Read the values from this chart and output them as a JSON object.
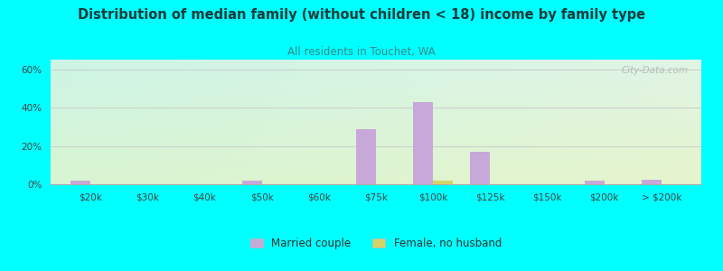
{
  "title": "Distribution of median family (without children < 18) income by family type",
  "subtitle": "All residents in Touchet, WA",
  "title_color": "#1a3a3a",
  "subtitle_color": "#3a8a8a",
  "categories": [
    "$20k",
    "$30k",
    "$40k",
    "$50k",
    "$60k",
    "$75k",
    "$100k",
    "$125k",
    "$150k",
    "$200k",
    "> $200k"
  ],
  "married_couple": [
    2.0,
    0,
    0,
    2.0,
    0,
    28.5,
    43.0,
    17.0,
    0,
    2.0,
    2.5
  ],
  "female_no_husband": [
    0,
    0,
    0,
    0,
    0,
    0,
    2.0,
    0,
    0,
    0,
    0
  ],
  "married_color": "#c8a8d8",
  "female_color": "#d4d468",
  "bar_width": 0.35,
  "ylim": [
    0,
    65
  ],
  "yticks": [
    0,
    20,
    40,
    60
  ],
  "ytick_labels": [
    "0%",
    "20%",
    "40%",
    "60%"
  ],
  "background_outer": "#00ffff",
  "watermark": "City-Data.com",
  "grid_color": "#cccccc"
}
